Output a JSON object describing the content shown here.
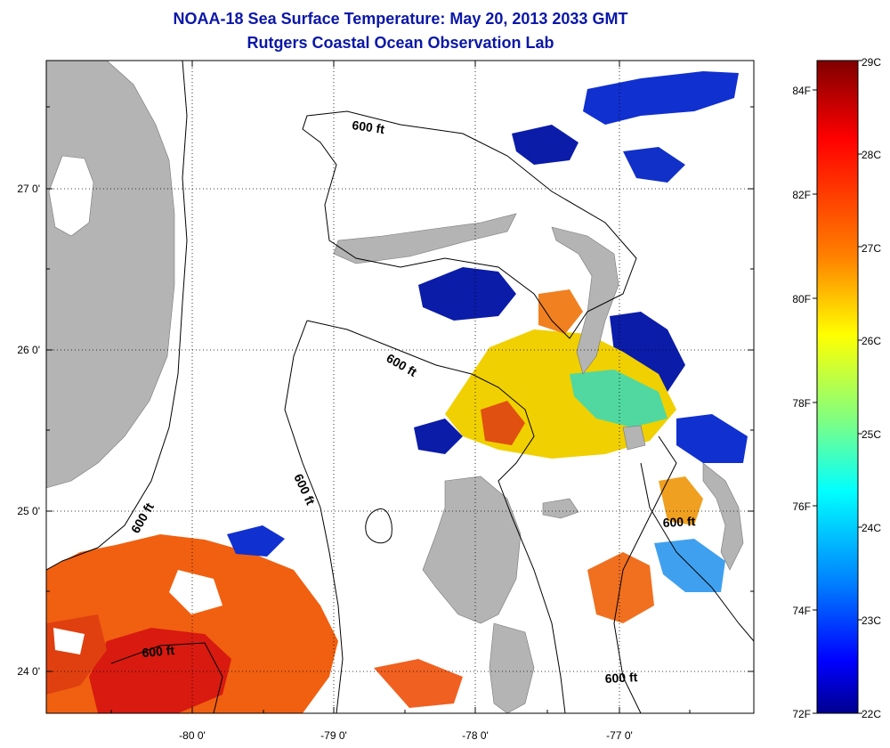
{
  "title": "NOAA-18 Sea Surface Temperature:  May 20, 2013 2033 GMT",
  "subtitle": "Rutgers Coastal Ocean Observation Lab",
  "axes": {
    "lon_ticks": [
      "-80 0'",
      "-79 0'",
      "-78 0'",
      "-77 0'"
    ],
    "lat_ticks": [
      "27 0'",
      "26 0'",
      "25 0'",
      "24 0'"
    ]
  },
  "contour_labels": [
    "600 ft",
    "600 ft",
    "600 ft",
    "600 ft",
    "600 ft",
    "600 ft"
  ],
  "colorbar": {
    "celsius": [
      "29C",
      "28C",
      "27C",
      "26C",
      "25C",
      "24C",
      "23C",
      "22C"
    ],
    "fahrenheit": [
      "84F",
      "82F",
      "80F",
      "78F",
      "76F",
      "74F",
      "72F"
    ],
    "colors": [
      "#7f0000",
      "#ff0000",
      "#ff8000",
      "#ffff00",
      "#80ff80",
      "#00ffff",
      "#0080ff",
      "#0000ff",
      "#00008f"
    ]
  },
  "legend_colors": {
    "land": "#b4b4b4",
    "cloud_no_data": "#ffffff"
  }
}
